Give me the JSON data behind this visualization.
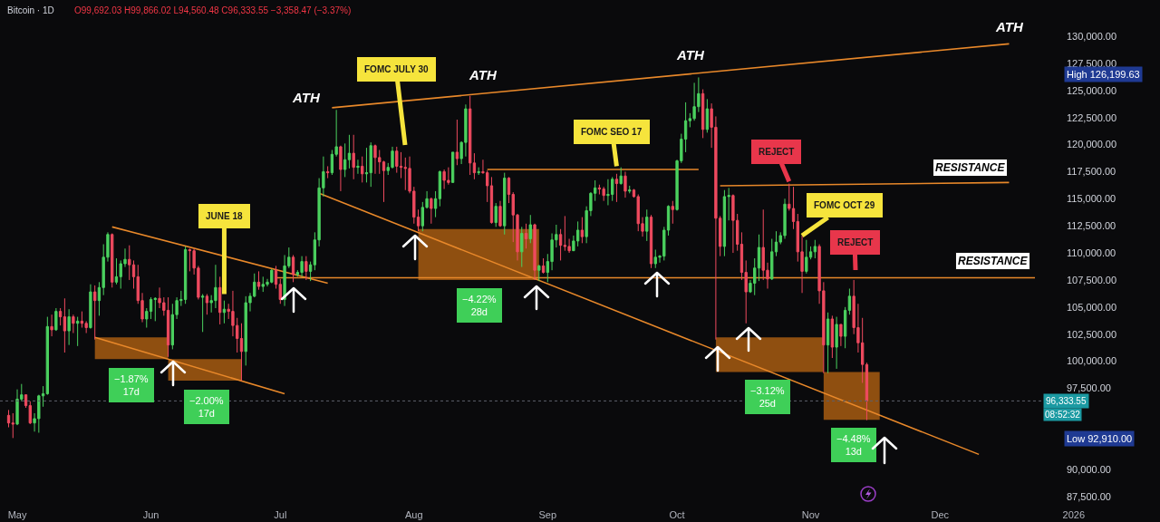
{
  "chart_data": {
    "type": "candlestick",
    "title": "Bitcoin · 1D",
    "subtitle": "O99,692.03 H99,866.02 L94,560.48 C96,333.55 −3,358.47 (−3.37%)",
    "x": [
      "2025-04-29",
      "2025-04-30",
      "2025-05-01",
      "2025-05-02",
      "2025-05-03",
      "2025-05-04",
      "2025-05-05",
      "2025-05-06",
      "2025-05-07",
      "2025-05-08",
      "2025-05-09",
      "2025-05-10",
      "2025-05-11",
      "2025-05-12",
      "2025-05-13",
      "2025-05-14",
      "2025-05-15",
      "2025-05-16",
      "2025-05-17",
      "2025-05-18",
      "2025-05-19",
      "2025-05-20",
      "2025-05-21",
      "2025-05-22",
      "2025-05-23",
      "2025-05-24",
      "2025-05-25",
      "2025-05-26",
      "2025-05-27",
      "2025-05-28",
      "2025-05-29",
      "2025-05-30",
      "2025-05-31",
      "2025-06-01",
      "2025-06-02",
      "2025-06-03",
      "2025-06-04",
      "2025-06-05",
      "2025-06-06",
      "2025-06-07",
      "2025-06-08",
      "2025-06-09",
      "2025-06-10",
      "2025-06-11",
      "2025-06-12",
      "2025-06-13",
      "2025-06-14",
      "2025-06-15",
      "2025-06-16",
      "2025-06-17",
      "2025-06-18",
      "2025-06-19",
      "2025-06-20",
      "2025-06-21",
      "2025-06-22",
      "2025-06-23",
      "2025-06-24",
      "2025-06-25",
      "2025-06-26",
      "2025-06-27",
      "2025-06-28",
      "2025-06-29",
      "2025-06-30",
      "2025-07-01",
      "2025-07-02",
      "2025-07-03",
      "2025-07-04",
      "2025-07-05",
      "2025-07-06",
      "2025-07-07",
      "2025-07-08",
      "2025-07-09",
      "2025-07-10",
      "2025-07-11",
      "2025-07-12",
      "2025-07-13",
      "2025-07-14",
      "2025-07-15",
      "2025-07-16",
      "2025-07-17",
      "2025-07-18",
      "2025-07-19",
      "2025-07-20",
      "2025-07-21",
      "2025-07-22",
      "2025-07-23",
      "2025-07-24",
      "2025-07-25",
      "2025-07-26",
      "2025-07-27",
      "2025-07-28",
      "2025-07-29",
      "2025-07-30",
      "2025-07-31",
      "2025-08-01",
      "2025-08-02",
      "2025-08-03",
      "2025-08-04",
      "2025-08-05",
      "2025-08-06",
      "2025-08-07",
      "2025-08-08",
      "2025-08-09",
      "2025-08-10",
      "2025-08-11",
      "2025-08-12",
      "2025-08-13",
      "2025-08-14",
      "2025-08-15",
      "2025-08-16",
      "2025-08-17",
      "2025-08-18",
      "2025-08-19",
      "2025-08-20",
      "2025-08-21",
      "2025-08-22",
      "2025-08-23",
      "2025-08-24",
      "2025-08-25",
      "2025-08-26",
      "2025-08-27",
      "2025-08-28",
      "2025-08-29",
      "2025-08-30",
      "2025-08-31",
      "2025-09-01",
      "2025-09-02",
      "2025-09-03",
      "2025-09-04",
      "2025-09-05",
      "2025-09-06",
      "2025-09-07",
      "2025-09-08",
      "2025-09-09",
      "2025-09-10",
      "2025-09-11",
      "2025-09-12",
      "2025-09-13",
      "2025-09-14",
      "2025-09-15",
      "2025-09-16",
      "2025-09-17",
      "2025-09-18",
      "2025-09-19",
      "2025-09-20",
      "2025-09-21",
      "2025-09-22",
      "2025-09-23",
      "2025-09-24",
      "2025-09-25",
      "2025-09-26",
      "2025-09-27",
      "2025-09-28",
      "2025-09-29",
      "2025-09-30",
      "2025-10-01",
      "2025-10-02",
      "2025-10-03",
      "2025-10-04",
      "2025-10-05",
      "2025-10-06",
      "2025-10-07",
      "2025-10-08",
      "2025-10-09",
      "2025-10-10",
      "2025-10-11",
      "2025-10-12",
      "2025-10-13",
      "2025-10-14",
      "2025-10-15",
      "2025-10-16",
      "2025-10-17",
      "2025-10-18",
      "2025-10-19",
      "2025-10-20",
      "2025-10-21",
      "2025-10-22",
      "2025-10-23",
      "2025-10-24",
      "2025-10-25",
      "2025-10-26",
      "2025-10-27",
      "2025-10-28",
      "2025-10-29",
      "2025-10-30",
      "2025-10-31",
      "2025-11-01",
      "2025-11-02",
      "2025-11-03",
      "2025-11-04",
      "2025-11-05",
      "2025-11-06",
      "2025-11-07",
      "2025-11-08",
      "2025-11-09",
      "2025-11-10",
      "2025-11-11",
      "2025-11-12",
      "2025-11-13",
      "2025-11-14"
    ],
    "ohlc": [
      [
        95000,
        95500,
        93900,
        94300
      ],
      [
        94300,
        95200,
        92910,
        94200
      ],
      [
        94200,
        97400,
        94100,
        96500
      ],
      [
        96500,
        97900,
        96300,
        96900
      ],
      [
        96900,
        96900,
        95700,
        95900
      ],
      [
        95900,
        96300,
        94200,
        94300
      ],
      [
        94300,
        95200,
        93500,
        94700
      ],
      [
        94700,
        96900,
        93400,
        96800
      ],
      [
        96800,
        97700,
        95800,
        97000
      ],
      [
        97000,
        104100,
        96900,
        103200
      ],
      [
        103200,
        104300,
        102300,
        102900
      ],
      [
        102900,
        104900,
        102800,
        104600
      ],
      [
        104600,
        104900,
        103300,
        104100
      ],
      [
        104100,
        105800,
        100800,
        102800
      ],
      [
        102800,
        104800,
        101500,
        104100
      ],
      [
        104100,
        104300,
        102600,
        103500
      ],
      [
        103500,
        104100,
        101400,
        103700
      ],
      [
        103700,
        104600,
        103100,
        103500
      ],
      [
        103500,
        103700,
        102600,
        103100
      ],
      [
        103100,
        107100,
        103000,
        106400
      ],
      [
        106400,
        107000,
        102000,
        105600
      ],
      [
        105600,
        107300,
        104200,
        106800
      ],
      [
        106800,
        110800,
        106100,
        109600
      ],
      [
        109600,
        111900,
        109200,
        111700
      ],
      [
        111700,
        111800,
        106800,
        107300
      ],
      [
        107300,
        109500,
        107100,
        107800
      ],
      [
        107800,
        109300,
        106700,
        109000
      ],
      [
        109000,
        110400,
        108700,
        109400
      ],
      [
        109400,
        110700,
        107500,
        108900
      ],
      [
        108900,
        109300,
        106700,
        107800
      ],
      [
        107800,
        108900,
        105300,
        105600
      ],
      [
        105600,
        106300,
        103600,
        103900
      ],
      [
        103900,
        104900,
        103100,
        104600
      ],
      [
        104600,
        105900,
        103900,
        105700
      ],
      [
        105700,
        105900,
        103700,
        105800
      ],
      [
        105800,
        106800,
        104900,
        105400
      ],
      [
        105400,
        105900,
        104200,
        104700
      ],
      [
        104700,
        105900,
        100400,
        101500
      ],
      [
        101500,
        105300,
        101100,
        104300
      ],
      [
        104300,
        105900,
        103900,
        105600
      ],
      [
        105600,
        106500,
        105100,
        105700
      ],
      [
        105700,
        110600,
        105300,
        110300
      ],
      [
        110300,
        110400,
        108300,
        110200
      ],
      [
        110200,
        110400,
        108000,
        108600
      ],
      [
        108600,
        108800,
        105700,
        105900
      ],
      [
        105900,
        106200,
        102700,
        106000
      ],
      [
        106000,
        106200,
        104300,
        105400
      ],
      [
        105400,
        106100,
        104500,
        105600
      ],
      [
        105600,
        108900,
        104900,
        106800
      ],
      [
        106800,
        107800,
        103400,
        104500
      ],
      [
        104500,
        105600,
        103500,
        104800
      ],
      [
        104800,
        105300,
        103900,
        104600
      ],
      [
        104600,
        106500,
        102300,
        103300
      ],
      [
        103300,
        104000,
        100800,
        102100
      ],
      [
        102100,
        103500,
        98200,
        100900
      ],
      [
        100900,
        106000,
        99600,
        105400
      ],
      [
        105400,
        106300,
        104600,
        106000
      ],
      [
        106000,
        108100,
        105900,
        107300
      ],
      [
        107300,
        108300,
        106600,
        106900
      ],
      [
        106900,
        107800,
        106400,
        107100
      ],
      [
        107100,
        107600,
        106900,
        107300
      ],
      [
        107300,
        108500,
        107200,
        108400
      ],
      [
        108400,
        108800,
        106700,
        107100
      ],
      [
        107100,
        107600,
        105300,
        105700
      ],
      [
        105700,
        109800,
        105100,
        108800
      ],
      [
        108800,
        110500,
        108600,
        109600
      ],
      [
        109600,
        109800,
        107300,
        108000
      ],
      [
        108000,
        108400,
        107800,
        108200
      ],
      [
        108200,
        109700,
        107800,
        109200
      ],
      [
        109200,
        109700,
        107500,
        108300
      ],
      [
        108300,
        109200,
        107400,
        108900
      ],
      [
        108900,
        111900,
        108400,
        111200
      ],
      [
        111200,
        116900,
        110600,
        116000
      ],
      [
        116000,
        118900,
        115200,
        117500
      ],
      [
        117500,
        118000,
        116900,
        117400
      ],
      [
        117400,
        119500,
        117200,
        119100
      ],
      [
        119100,
        123200,
        118900,
        119800
      ],
      [
        119800,
        119900,
        115700,
        117700
      ],
      [
        117700,
        120100,
        117000,
        118600
      ],
      [
        118600,
        120900,
        117800,
        119200
      ],
      [
        119200,
        120900,
        116800,
        117900
      ],
      [
        117900,
        118600,
        117300,
        118000
      ],
      [
        118000,
        118900,
        116500,
        117300
      ],
      [
        117300,
        119700,
        116500,
        117400
      ],
      [
        117400,
        120200,
        116100,
        119900
      ],
      [
        119900,
        120000,
        117300,
        118800
      ],
      [
        118800,
        119500,
        117300,
        118400
      ],
      [
        118400,
        118500,
        114700,
        117600
      ],
      [
        117600,
        118300,
        117200,
        117900
      ],
      [
        117900,
        119800,
        117800,
        119400
      ],
      [
        119400,
        119800,
        117400,
        118000
      ],
      [
        118000,
        119300,
        116900,
        117900
      ],
      [
        117900,
        118800,
        115800,
        117800
      ],
      [
        117800,
        118900,
        115500,
        115700
      ],
      [
        115700,
        116100,
        112700,
        113300
      ],
      [
        113300,
        114000,
        112000,
        112500
      ],
      [
        112500,
        114700,
        112000,
        114200
      ],
      [
        114200,
        115700,
        114100,
        115000
      ],
      [
        115000,
        115100,
        112700,
        114100
      ],
      [
        114100,
        115700,
        113300,
        115000
      ],
      [
        115000,
        117600,
        114300,
        117500
      ],
      [
        117500,
        117700,
        115900,
        116700
      ],
      [
        116700,
        117900,
        116300,
        116500
      ],
      [
        116500,
        119300,
        116500,
        119300
      ],
      [
        119300,
        122300,
        118100,
        118700
      ],
      [
        118700,
        120300,
        118200,
        120200
      ],
      [
        120200,
        123700,
        118900,
        123300
      ],
      [
        123300,
        124500,
        117200,
        118300
      ],
      [
        118300,
        119200,
        116800,
        117400
      ],
      [
        117400,
        117900,
        117200,
        117500
      ],
      [
        117500,
        118600,
        117300,
        117400
      ],
      [
        117400,
        117600,
        114700,
        116200
      ],
      [
        116200,
        117000,
        112700,
        112800
      ],
      [
        112800,
        114600,
        112400,
        114300
      ],
      [
        114300,
        114800,
        112400,
        112500
      ],
      [
        112500,
        117400,
        111700,
        116900
      ],
      [
        116900,
        117000,
        114600,
        115400
      ],
      [
        115400,
        115600,
        111000,
        113500
      ],
      [
        113500,
        113600,
        109300,
        110100
      ],
      [
        110100,
        112400,
        108700,
        111800
      ],
      [
        111800,
        112700,
        110400,
        111300
      ],
      [
        111300,
        113500,
        110900,
        112600
      ],
      [
        112600,
        112700,
        107500,
        108400
      ],
      [
        108400,
        108900,
        107400,
        108800
      ],
      [
        108800,
        109500,
        108100,
        108200
      ],
      [
        108200,
        109900,
        107300,
        109200
      ],
      [
        109200,
        111800,
        108400,
        111200
      ],
      [
        111200,
        112600,
        110500,
        111700
      ],
      [
        111700,
        112200,
        109300,
        110700
      ],
      [
        110700,
        113400,
        110200,
        110600
      ],
      [
        110600,
        111300,
        110000,
        110200
      ],
      [
        110200,
        111600,
        110200,
        111100
      ],
      [
        111100,
        112900,
        110600,
        112100
      ],
      [
        112100,
        113300,
        110900,
        111500
      ],
      [
        111500,
        114300,
        110900,
        113900
      ],
      [
        113900,
        115600,
        113400,
        115500
      ],
      [
        115500,
        116700,
        114800,
        116000
      ],
      [
        116000,
        116300,
        115400,
        115900
      ],
      [
        115900,
        116100,
        114800,
        115300
      ],
      [
        115300,
        116800,
        114400,
        115400
      ],
      [
        115400,
        117000,
        114800,
        116800
      ],
      [
        116800,
        117300,
        114700,
        116400
      ],
      [
        116400,
        117900,
        116300,
        117100
      ],
      [
        117100,
        117500,
        115100,
        115700
      ],
      [
        115700,
        116200,
        115500,
        115800
      ],
      [
        115800,
        115900,
        115100,
        115200
      ],
      [
        115200,
        115400,
        112000,
        112700
      ],
      [
        112700,
        113300,
        111500,
        112000
      ],
      [
        112000,
        114000,
        111100,
        113300
      ],
      [
        113300,
        113500,
        108600,
        109000
      ],
      [
        109000,
        110300,
        108600,
        109600
      ],
      [
        109600,
        109800,
        109100,
        109700
      ],
      [
        109700,
        112400,
        109300,
        112100
      ],
      [
        112100,
        114400,
        111600,
        114300
      ],
      [
        114300,
        114800,
        112700,
        114000
      ],
      [
        114000,
        118600,
        113900,
        118500
      ],
      [
        118500,
        121000,
        118300,
        120500
      ],
      [
        120500,
        123900,
        119300,
        122200
      ],
      [
        122200,
        122900,
        121600,
        122400
      ],
      [
        122400,
        125700,
        122200,
        123500
      ],
      [
        123500,
        126199.63,
        123000,
        124700
      ],
      [
        124700,
        125100,
        120600,
        121400
      ],
      [
        121400,
        124200,
        121100,
        123300
      ],
      [
        123300,
        123800,
        119700,
        121600
      ],
      [
        121600,
        122600,
        102000,
        113200
      ],
      [
        113200,
        113400,
        109700,
        110600
      ],
      [
        110600,
        115800,
        109700,
        115200
      ],
      [
        115200,
        116000,
        113000,
        115300
      ],
      [
        115300,
        115400,
        110000,
        113000
      ],
      [
        113000,
        113600,
        110200,
        110800
      ],
      [
        110800,
        111900,
        107500,
        108200
      ],
      [
        108200,
        109300,
        103500,
        106400
      ],
      [
        106400,
        107500,
        106300,
        107200
      ],
      [
        107200,
        109500,
        106100,
        108600
      ],
      [
        108600,
        111700,
        107400,
        110500
      ],
      [
        110500,
        114000,
        107500,
        108400
      ],
      [
        108400,
        109100,
        106700,
        107600
      ],
      [
        107600,
        111300,
        107500,
        110100
      ],
      [
        110100,
        112000,
        109700,
        111000
      ],
      [
        111000,
        111900,
        110800,
        111600
      ],
      [
        111600,
        115000,
        111300,
        114500
      ],
      [
        114500,
        116400,
        113900,
        114100
      ],
      [
        114100,
        116100,
        112200,
        112900
      ],
      [
        112900,
        113600,
        109200,
        110100
      ],
      [
        110100,
        111600,
        106300,
        108300
      ],
      [
        108300,
        111200,
        108100,
        109600
      ],
      [
        109600,
        110600,
        109400,
        110100
      ],
      [
        110100,
        111200,
        109500,
        110600
      ],
      [
        110600,
        110800,
        105300,
        106500
      ],
      [
        106500,
        107300,
        98900,
        101500
      ],
      [
        101500,
        104500,
        98900,
        103900
      ],
      [
        103900,
        104200,
        100300,
        101300
      ],
      [
        101300,
        104100,
        99300,
        103400
      ],
      [
        103400,
        103400,
        101400,
        102300
      ],
      [
        102300,
        105000,
        101200,
        104700
      ],
      [
        104700,
        106700,
        104300,
        106000
      ],
      [
        106000,
        107500,
        102500,
        103100
      ],
      [
        103100,
        105300,
        100800,
        101700
      ],
      [
        101700,
        104000,
        98000,
        99700
      ],
      [
        99692.03,
        99866.02,
        94560.48,
        96333.55
      ]
    ],
    "series": [
      {
        "type": "area",
        "color": "#8f4f10",
        "x": [
          "2025-05-19",
          "2025-06-05"
        ],
        "values": [
          null,
          null
        ],
        "upper": [
          102200,
          102200
        ],
        "lower": [
          100200,
          100200
        ]
      },
      {
        "type": "area",
        "color": "#8f4f10",
        "x": [
          "2025-06-05",
          "2025-06-22"
        ],
        "values": [
          null,
          null
        ],
        "upper": [
          100200,
          100200
        ],
        "lower": [
          98200,
          98200
        ]
      },
      {
        "type": "area",
        "color": "#8f4f10",
        "x": [
          "2025-08-02",
          "2025-08-30"
        ],
        "values": [
          null,
          null
        ],
        "upper": [
          112200,
          112200
        ],
        "lower": [
          107500,
          107500
        ]
      },
      {
        "type": "area",
        "color": "#8f4f10",
        "x": [
          "2025-10-10",
          "2025-11-04"
        ],
        "values": [
          null,
          null
        ],
        "upper": [
          102200,
          102200
        ],
        "lower": [
          99000,
          99000
        ]
      },
      {
        "type": "area",
        "color": "#8f4f10",
        "x": [
          "2025-11-04",
          "2025-11-17"
        ],
        "values": [
          null,
          null
        ],
        "upper": [
          99000,
          99000
        ],
        "lower": [
          94600,
          94600
        ]
      },
      {
        "type": "line",
        "color": "#e8882a",
        "x": [
          "2025-05-23",
          "2025-07-12"
        ],
        "values": [
          112400,
          107200
        ]
      },
      {
        "type": "line",
        "color": "#e8882a",
        "x": [
          "2025-05-19",
          "2025-07-02"
        ],
        "values": [
          102200,
          97000
        ]
      },
      {
        "type": "line",
        "color": "#e8882a",
        "x": [
          "2025-07-10",
          "2025-12-10"
        ],
        "values": [
          115500,
          91400
        ]
      },
      {
        "type": "line",
        "color": "#e8882a",
        "x": [
          "2025-07-13",
          "2025-12-17"
        ],
        "values": [
          123400,
          129300
        ]
      },
      {
        "type": "line",
        "color": "#e8882a",
        "x": [
          "2025-06-30",
          "2025-12-23"
        ],
        "values": [
          107700,
          107700
        ]
      },
      {
        "type": "line",
        "color": "#e8882a",
        "x": [
          "2025-08-18",
          "2025-10-06"
        ],
        "values": [
          117700,
          117700
        ]
      },
      {
        "type": "line",
        "color": "#e8882a",
        "x": [
          "2025-10-11",
          "2025-12-17"
        ],
        "values": [
          116200,
          116500
        ]
      }
    ],
    "xlim": [
      "2025-04-27",
      "2026-01-21"
    ],
    "xticks": [
      {
        "value": "2025-05-01",
        "label": "May"
      },
      {
        "value": "2025-06-01",
        "label": "Jun"
      },
      {
        "value": "2025-07-01",
        "label": "Jul"
      },
      {
        "value": "2025-08-01",
        "label": "Aug"
      },
      {
        "value": "2025-09-01",
        "label": "Sep"
      },
      {
        "value": "2025-10-01",
        "label": "Oct"
      },
      {
        "value": "2025-11-01",
        "label": "Nov"
      },
      {
        "value": "2025-12-01",
        "label": "Dec"
      },
      {
        "value": "2026-01-01",
        "label": "2026"
      }
    ],
    "ylim": [
      87500,
      130000
    ],
    "yticks": [
      {
        "value": 87500,
        "label": "87,500.00"
      },
      {
        "value": 90000,
        "label": "90,000.00"
      },
      {
        "value": 97500,
        "label": "97,500.00"
      },
      {
        "value": 100000,
        "label": "100,000.00"
      },
      {
        "value": 102500,
        "label": "102,500.00"
      },
      {
        "value": 105000,
        "label": "105,000.00"
      },
      {
        "value": 107500,
        "label": "107,500.00"
      },
      {
        "value": 110000,
        "label": "110,000.00"
      },
      {
        "value": 112500,
        "label": "112,500.00"
      },
      {
        "value": 115000,
        "label": "115,000.00"
      },
      {
        "value": 117500,
        "label": "117,500.00"
      },
      {
        "value": 120000,
        "label": "120,000.00"
      },
      {
        "value": 122500,
        "label": "122,500.00"
      },
      {
        "value": 125000,
        "label": "125,000.00"
      },
      {
        "value": 127500,
        "label": "127,500.00"
      },
      {
        "value": 130000,
        "label": "130,000.00"
      }
    ],
    "ref_lines": [
      {
        "axis": "y",
        "value": 96333.55,
        "label": "96,333.55",
        "line_style": "dotted",
        "color": "#5d606b"
      }
    ],
    "annotations": [
      "ATH",
      "ATH",
      "ATH",
      "ATH",
      "FOMC JULY 30",
      {
        "text": "JUNE 18",
        "x": "2025-06-18",
        "y": 106200
      },
      {
        "text": "FOMC SEO 17",
        "x": "2025-09-17",
        "y": 118000
      },
      {
        "text": "REJECT",
        "x": "2025-10-27",
        "y": 116600
      },
      {
        "text": "FOMC OCT 29",
        "x": "2025-10-30",
        "y": 111600
      },
      "REJECT",
      "RESISTANCE",
      "RESISTANCE",
      "−1.87%\n17d",
      "−2.00%\n17d",
      "−4.22%\n28d",
      {
        "text": "−3.12%\n25d",
        "x": "2025-10-22",
        "y": 96700
      },
      "−4.48%\n13d",
      "High 126,199.63",
      "Low 92,910.00",
      "08:52:32"
    ],
    "grid": false
  }
}
